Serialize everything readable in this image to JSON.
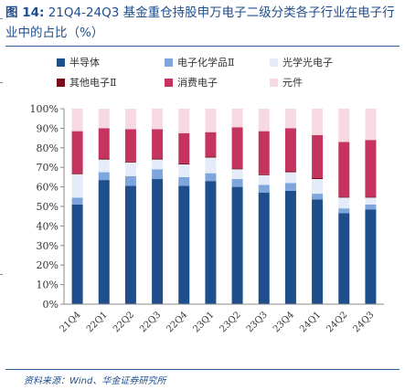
{
  "figure": {
    "label": "图 14:",
    "title": "21Q4-24Q3 基金重仓持股申万电子二级分类各子行业在电子行业中的占比（%）",
    "source": "资料来源：Wind、华金证券研究所"
  },
  "colors": {
    "title": "#1f4e8c",
    "rules": "#2f5f9e"
  },
  "chart_data": {
    "type": "bar",
    "stacked": true,
    "categories": [
      "21Q4",
      "22Q1",
      "22Q2",
      "22Q3",
      "22Q4",
      "23Q1",
      "23Q2",
      "23Q3",
      "23Q4",
      "24Q1",
      "24Q2",
      "24Q3"
    ],
    "ylim": [
      0,
      100
    ],
    "yticks": [
      "0%",
      "10%",
      "20%",
      "30%",
      "40%",
      "50%",
      "60%",
      "70%",
      "80%",
      "90%",
      "100%"
    ],
    "legend_position": "top",
    "grid": false,
    "series": [
      {
        "name": "半导体",
        "color": "#1f4e8c",
        "values": [
          51.0,
          63.5,
          60.5,
          64.0,
          60.5,
          63.0,
          60.0,
          57.0,
          58.0,
          53.5,
          46.5,
          48.5
        ]
      },
      {
        "name": "电子化学品Ⅱ",
        "color": "#7ea6dc",
        "values": [
          3.5,
          4.0,
          5.0,
          5.0,
          4.5,
          4.0,
          4.0,
          4.0,
          4.0,
          3.0,
          2.5,
          2.5
        ]
      },
      {
        "name": "光学光电子",
        "color": "#e3ecf8",
        "values": [
          12.0,
          6.5,
          7.0,
          5.0,
          6.5,
          8.0,
          5.0,
          5.0,
          5.5,
          7.5,
          5.5,
          3.5
        ]
      },
      {
        "name": "其他电子Ⅱ",
        "color": "#7a0a1a",
        "values": [
          0.5,
          0.5,
          0.5,
          0.5,
          0.5,
          0.5,
          0.5,
          0.5,
          0.5,
          0.5,
          0.5,
          0.5
        ]
      },
      {
        "name": "消费电子",
        "color": "#c4345e",
        "values": [
          21.5,
          15.5,
          16.5,
          15.0,
          15.5,
          12.5,
          21.0,
          22.0,
          22.0,
          22.0,
          28.0,
          29.0
        ]
      },
      {
        "name": "元件",
        "color": "#f7d9e3",
        "values": [
          11.5,
          10.0,
          10.5,
          10.5,
          12.5,
          12.0,
          9.5,
          11.5,
          10.0,
          13.5,
          17.0,
          16.0
        ]
      }
    ]
  }
}
